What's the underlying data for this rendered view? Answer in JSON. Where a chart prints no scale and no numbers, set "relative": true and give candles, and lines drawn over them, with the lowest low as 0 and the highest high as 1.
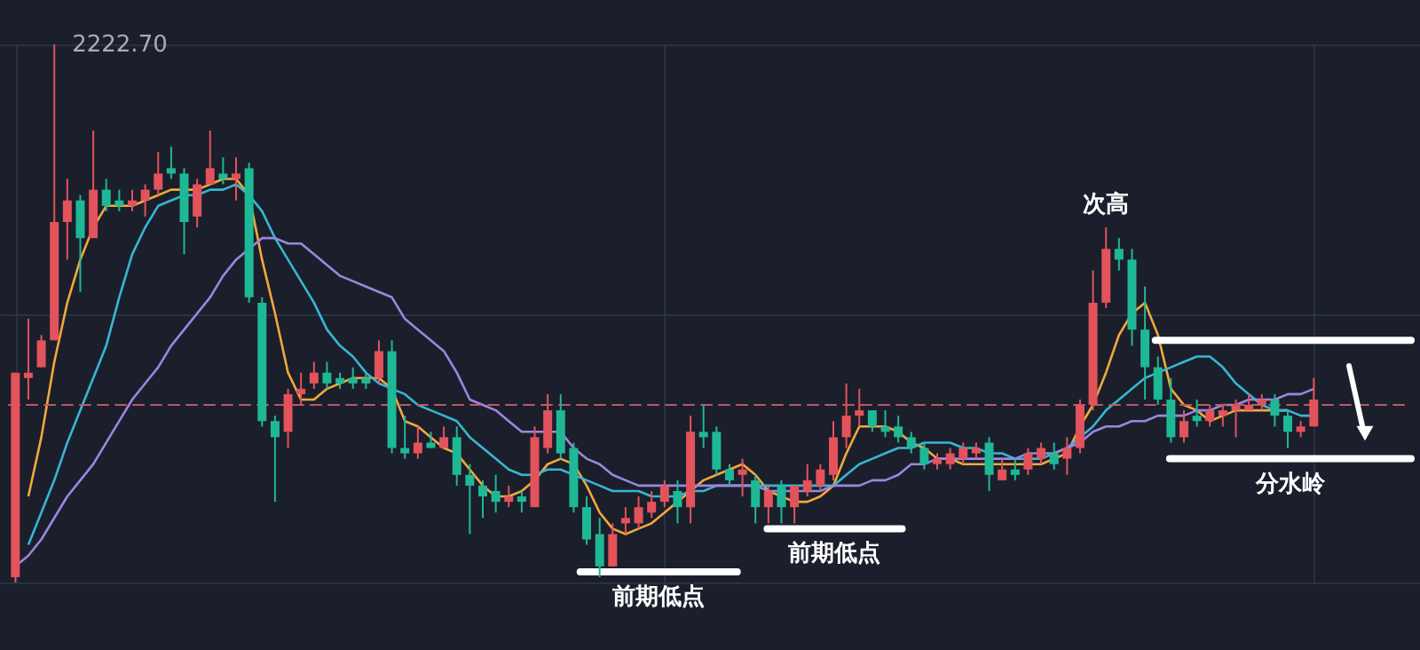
{
  "chart_data": {
    "type": "candlestick",
    "relative": true,
    "grid": true,
    "marker": "none",
    "line_style": "solid",
    "categories": [
      null,
      null,
      null,
      null,
      null,
      null,
      null,
      null,
      null,
      null,
      null,
      null,
      null,
      null,
      null,
      null,
      null,
      null,
      null,
      null,
      null,
      null,
      null,
      null,
      null,
      null,
      null,
      null,
      null,
      null,
      null,
      null,
      null,
      null,
      null,
      null,
      null,
      null,
      null,
      null,
      null,
      null,
      null,
      null,
      null,
      null,
      null,
      null,
      null,
      null,
      null,
      null,
      null,
      null,
      null,
      null,
      null,
      null,
      null,
      null,
      null,
      null,
      null,
      null,
      null,
      null,
      null,
      null,
      null,
      null,
      null,
      null,
      null,
      null,
      null,
      null,
      null,
      null,
      null,
      null,
      null,
      null,
      null,
      null,
      null,
      null,
      null,
      null,
      null,
      null,
      null,
      null,
      null,
      null,
      null,
      null,
      null,
      null,
      null,
      null,
      null
    ],
    "ohlc": [
      [
        0.01,
        0.39,
        0,
        0.39
      ],
      [
        0.38,
        0.49,
        0.34,
        0.39
      ],
      [
        0.4,
        0.46,
        0.4,
        0.45
      ],
      [
        0.45,
        1,
        0.45,
        0.67
      ],
      [
        0.67,
        0.75,
        0.6,
        0.71
      ],
      [
        0.71,
        0.72,
        0.54,
        0.64
      ],
      [
        0.64,
        0.84,
        0.64,
        0.73
      ],
      [
        0.73,
        0.75,
        0.69,
        0.7
      ],
      [
        0.71,
        0.73,
        0.69,
        0.7
      ],
      [
        0.7,
        0.73,
        0.69,
        0.71
      ],
      [
        0.71,
        0.74,
        0.68,
        0.73
      ],
      [
        0.73,
        0.8,
        0.72,
        0.76
      ],
      [
        0.77,
        0.81,
        0.75,
        0.76
      ],
      [
        0.76,
        0.77,
        0.61,
        0.67
      ],
      [
        0.68,
        0.75,
        0.66,
        0.74
      ],
      [
        0.74,
        0.84,
        0.74,
        0.77
      ],
      [
        0.76,
        0.79,
        0.74,
        0.75
      ],
      [
        0.75,
        0.79,
        0.71,
        0.76
      ],
      [
        0.77,
        0.78,
        0.52,
        0.53
      ],
      [
        0.52,
        0.53,
        0.29,
        0.3
      ],
      [
        0.3,
        0.31,
        0.15,
        0.27
      ],
      [
        0.28,
        0.36,
        0.25,
        0.35
      ],
      [
        0.35,
        0.39,
        0.33,
        0.36
      ],
      [
        0.37,
        0.41,
        0.36,
        0.39
      ],
      [
        0.39,
        0.41,
        0.36,
        0.37
      ],
      [
        0.38,
        0.39,
        0.36,
        0.37
      ],
      [
        0.38,
        0.4,
        0.36,
        0.37
      ],
      [
        0.38,
        0.39,
        0.36,
        0.37
      ],
      [
        0.38,
        0.45,
        0.37,
        0.43
      ],
      [
        0.43,
        0.45,
        0.24,
        0.25
      ],
      [
        0.25,
        0.31,
        0.23,
        0.24
      ],
      [
        0.24,
        0.29,
        0.23,
        0.26
      ],
      [
        0.26,
        0.28,
        0.25,
        0.25
      ],
      [
        0.25,
        0.29,
        0.25,
        0.27
      ],
      [
        0.27,
        0.29,
        0.18,
        0.2
      ],
      [
        0.2,
        0.22,
        0.09,
        0.18
      ],
      [
        0.18,
        0.19,
        0.12,
        0.16
      ],
      [
        0.17,
        0.2,
        0.13,
        0.15
      ],
      [
        0.15,
        0.18,
        0.14,
        0.16
      ],
      [
        0.16,
        0.17,
        0.13,
        0.15
      ],
      [
        0.14,
        0.29,
        0.14,
        0.27
      ],
      [
        0.25,
        0.35,
        0.24,
        0.32
      ],
      [
        0.32,
        0.35,
        0.23,
        0.24
      ],
      [
        0.25,
        0.26,
        0.13,
        0.14
      ],
      [
        0.14,
        0.16,
        0.07,
        0.08
      ],
      [
        0.09,
        0.12,
        0.01,
        0.03
      ],
      [
        0.03,
        0.11,
        0.03,
        0.09
      ],
      [
        0.11,
        0.14,
        0.09,
        0.12
      ],
      [
        0.11,
        0.16,
        0.1,
        0.14
      ],
      [
        0.13,
        0.17,
        0.12,
        0.15
      ],
      [
        0.15,
        0.19,
        0.14,
        0.18
      ],
      [
        0.17,
        0.19,
        0.11,
        0.14
      ],
      [
        0.14,
        0.31,
        0.11,
        0.28
      ],
      [
        0.28,
        0.33,
        0.25,
        0.27
      ],
      [
        0.28,
        0.29,
        0.2,
        0.21
      ],
      [
        0.21,
        0.22,
        0.18,
        0.19
      ],
      [
        0.2,
        0.23,
        0.16,
        0.21
      ],
      [
        0.19,
        0.2,
        0.11,
        0.14
      ],
      [
        0.14,
        0.18,
        0.11,
        0.17
      ],
      [
        0.18,
        0.19,
        0.11,
        0.14
      ],
      [
        0.14,
        0.18,
        0.11,
        0.18
      ],
      [
        0.17,
        0.22,
        0.16,
        0.19
      ],
      [
        0.18,
        0.22,
        0.17,
        0.21
      ],
      [
        0.2,
        0.3,
        0.19,
        0.27
      ],
      [
        0.27,
        0.37,
        0.25,
        0.31
      ],
      [
        0.31,
        0.36,
        0.29,
        0.32
      ],
      [
        0.32,
        0.32,
        0.28,
        0.29
      ],
      [
        0.29,
        0.32,
        0.27,
        0.28
      ],
      [
        0.29,
        0.31,
        0.26,
        0.27
      ],
      [
        0.27,
        0.28,
        0.24,
        0.25
      ],
      [
        0.25,
        0.26,
        0.21,
        0.22
      ],
      [
        0.22,
        0.24,
        0.21,
        0.23
      ],
      [
        0.22,
        0.25,
        0.21,
        0.24
      ],
      [
        0.23,
        0.26,
        0.22,
        0.25
      ],
      [
        0.24,
        0.26,
        0.23,
        0.25
      ],
      [
        0.26,
        0.27,
        0.17,
        0.2
      ],
      [
        0.19,
        0.23,
        0.19,
        0.21
      ],
      [
        0.21,
        0.23,
        0.19,
        0.2
      ],
      [
        0.21,
        0.25,
        0.2,
        0.24
      ],
      [
        0.23,
        0.26,
        0.22,
        0.25
      ],
      [
        0.24,
        0.26,
        0.21,
        0.22
      ],
      [
        0.23,
        0.27,
        0.2,
        0.25
      ],
      [
        0.25,
        0.34,
        0.24,
        0.33
      ],
      [
        0.33,
        0.58,
        0.32,
        0.52
      ],
      [
        0.52,
        0.66,
        0.51,
        0.62
      ],
      [
        0.62,
        0.64,
        0.58,
        0.6
      ],
      [
        0.6,
        0.62,
        0.44,
        0.47
      ],
      [
        0.47,
        0.55,
        0.34,
        0.4
      ],
      [
        0.4,
        0.42,
        0.33,
        0.34
      ],
      [
        0.34,
        0.38,
        0.26,
        0.27
      ],
      [
        0.27,
        0.32,
        0.26,
        0.3
      ],
      [
        0.31,
        0.34,
        0.29,
        0.3
      ],
      [
        0.3,
        0.33,
        0.29,
        0.32
      ],
      [
        0.31,
        0.33,
        0.29,
        0.32
      ],
      [
        0.32,
        0.34,
        0.27,
        0.33
      ],
      [
        0.32,
        0.35,
        0.32,
        0.33
      ],
      [
        0.33,
        0.35,
        0.32,
        0.34
      ],
      [
        0.34,
        0.35,
        0.29,
        0.31
      ],
      [
        0.31,
        0.32,
        0.25,
        0.28
      ],
      [
        0.28,
        0.3,
        0.27,
        0.29
      ],
      [
        0.29,
        0.38,
        0.29,
        0.34
      ]
    ],
    "series": [
      {
        "type": "line",
        "color": "#f2a93b",
        "values": [
          null,
          0.16,
          0.27,
          0.41,
          0.52,
          0.6,
          0.66,
          0.7,
          0.7,
          0.7,
          0.71,
          0.72,
          0.73,
          0.73,
          0.73,
          0.74,
          0.75,
          0.75,
          0.72,
          0.6,
          0.5,
          0.39,
          0.34,
          0.34,
          0.36,
          0.37,
          0.38,
          0.38,
          0.38,
          0.36,
          0.3,
          0.29,
          0.27,
          0.25,
          0.24,
          0.21,
          0.18,
          0.16,
          0.16,
          0.17,
          0.19,
          0.22,
          0.23,
          0.22,
          0.18,
          0.13,
          0.1,
          0.09,
          0.1,
          0.11,
          0.13,
          0.15,
          0.17,
          0.19,
          0.2,
          0.21,
          0.22,
          0.2,
          0.17,
          0.16,
          0.15,
          0.15,
          0.16,
          0.18,
          0.24,
          0.29,
          0.29,
          0.29,
          0.28,
          0.26,
          0.25,
          0.23,
          0.23,
          0.22,
          0.22,
          0.22,
          0.22,
          0.22,
          0.22,
          0.22,
          0.23,
          0.24,
          0.29,
          0.33,
          0.39,
          0.46,
          0.5,
          0.52,
          0.46,
          0.36,
          0.33,
          0.32,
          0.3,
          0.31,
          0.32,
          0.32,
          0.32,
          0.32,
          0.32,
          null,
          null
        ]
      },
      {
        "type": "line",
        "color": "#38b6d2",
        "values": [
          null,
          0.07,
          0.13,
          0.19,
          0.26,
          0.32,
          0.38,
          0.44,
          0.53,
          0.61,
          0.66,
          0.7,
          0.71,
          0.72,
          0.72,
          0.73,
          0.73,
          0.74,
          0.72,
          0.69,
          0.64,
          0.6,
          0.56,
          0.52,
          0.47,
          0.44,
          0.42,
          0.39,
          0.37,
          0.36,
          0.35,
          0.33,
          0.32,
          0.31,
          0.3,
          0.27,
          0.25,
          0.23,
          0.21,
          0.2,
          0.2,
          0.21,
          0.21,
          0.2,
          0.19,
          0.18,
          0.17,
          0.17,
          0.17,
          0.16,
          0.16,
          0.16,
          0.17,
          0.17,
          0.18,
          0.18,
          0.18,
          0.18,
          0.18,
          0.18,
          0.18,
          0.18,
          0.18,
          0.18,
          0.2,
          0.22,
          0.23,
          0.24,
          0.25,
          0.25,
          0.26,
          0.26,
          0.26,
          0.25,
          0.25,
          0.24,
          0.24,
          0.23,
          0.23,
          0.23,
          0.24,
          0.25,
          0.27,
          0.29,
          0.32,
          0.34,
          0.36,
          0.38,
          0.39,
          0.4,
          0.41,
          0.42,
          0.42,
          0.4,
          0.37,
          0.35,
          0.33,
          0.32,
          0.32,
          0.31,
          0.31
        ]
      },
      {
        "type": "line",
        "color": "#9d86e0",
        "values": [
          0.03,
          0.05,
          0.08,
          0.12,
          0.16,
          0.19,
          0.22,
          0.26,
          0.3,
          0.34,
          0.37,
          0.4,
          0.44,
          0.47,
          0.5,
          0.53,
          0.57,
          0.6,
          0.62,
          0.64,
          0.64,
          0.63,
          0.63,
          0.61,
          0.59,
          0.57,
          0.56,
          0.55,
          0.54,
          0.53,
          0.49,
          0.47,
          0.45,
          0.43,
          0.39,
          0.34,
          0.33,
          0.32,
          0.3,
          0.28,
          0.28,
          0.28,
          0.28,
          0.25,
          0.23,
          0.22,
          0.2,
          0.19,
          0.18,
          0.18,
          0.18,
          0.18,
          0.18,
          0.18,
          0.18,
          0.18,
          0.18,
          0.18,
          0.17,
          0.17,
          0.17,
          0.17,
          0.17,
          0.18,
          0.18,
          0.18,
          0.19,
          0.19,
          0.2,
          0.22,
          0.22,
          0.23,
          0.23,
          0.23,
          0.23,
          0.23,
          0.23,
          0.23,
          0.24,
          0.24,
          0.24,
          0.25,
          0.26,
          0.28,
          0.29,
          0.29,
          0.3,
          0.3,
          0.31,
          0.31,
          0.31,
          0.32,
          0.32,
          0.33,
          0.33,
          0.34,
          0.34,
          0.34,
          0.35,
          0.35,
          0.36
        ]
      }
    ],
    "ref_lines": [
      {
        "axis": "y",
        "value": 0.33,
        "color": "#b85a64",
        "line_style": "dashed"
      },
      {
        "axis": "y",
        "value": 0.45,
        "color": "#ffffff"
      },
      {
        "axis": "y",
        "value": 0.23,
        "color": "#ffffff",
        "label": "分水岭"
      },
      {
        "axis": "y",
        "value": 0.02,
        "color": "#ffffff",
        "label": "前期低点"
      },
      {
        "axis": "y",
        "value": 0.1,
        "color": "#ffffff",
        "label": "前期低点"
      }
    ],
    "annotations": [
      "2222.70",
      {
        "text": "次高",
        "y": 0.66
      }
    ]
  }
}
